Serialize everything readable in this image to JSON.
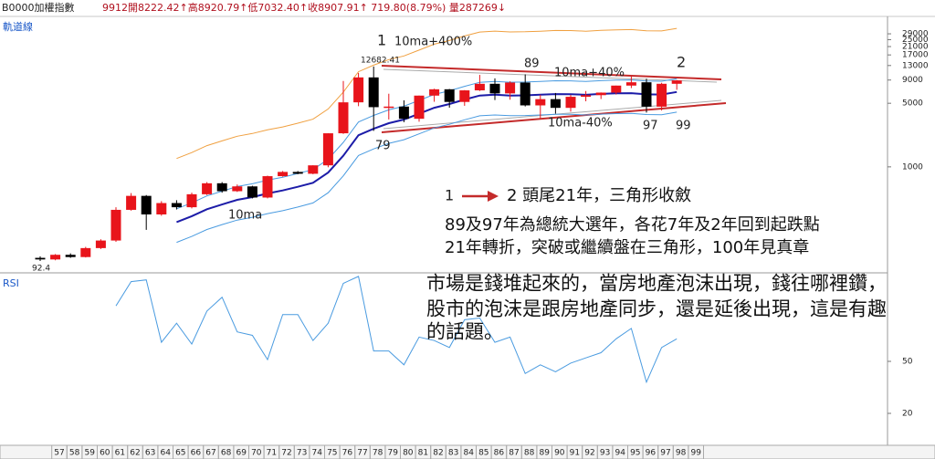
{
  "chart_data": [
    {
      "type": "candlestick",
      "title": "B0000加權指數",
      "subtitle": "9912開8222.42↑高8920.79↑低7032.40↑收8907.91↑  719.80(8.79%) 量287269↓",
      "panel_label": "軌道線",
      "categories": [
        "57",
        "58",
        "59",
        "60",
        "61",
        "62",
        "63",
        "64",
        "65",
        "66",
        "67",
        "68",
        "69",
        "70",
        "71",
        "72",
        "73",
        "74",
        "75",
        "76",
        "77",
        "78",
        "79",
        "80",
        "81",
        "82",
        "83",
        "84",
        "85",
        "86",
        "87",
        "88",
        "89",
        "90",
        "91",
        "92",
        "93",
        "94",
        "95",
        "96",
        "97",
        "98",
        "99"
      ],
      "open": [
        100,
        96,
        108,
        102,
        128,
        155,
        337,
        480,
        300,
        400,
        360,
        500,
        660,
        540,
        610,
        460,
        790,
        880,
        840,
        1039,
        2339,
        5119,
        9624,
        4530,
        4600,
        3377,
        6070,
        7124,
        5173,
        6933,
        8187,
        6418,
        8448,
        4739,
        5551,
        4452,
        5890,
        6139,
        6548,
        7823,
        8506,
        4591,
        8188
      ],
      "high": [
        104,
        110,
        112,
        132,
        160,
        360,
        515,
        490,
        420,
        430,
        520,
        680,
        680,
        640,
        620,
        800,
        900,
        900,
        1040,
        2340,
        8790,
        10773,
        12682.41,
        6365,
        5391,
        6070,
        7228,
        7180,
        6982,
        10256,
        9378,
        8710,
        10393,
        6198,
        6484,
        6182,
        6815,
        6575,
        7824,
        9807,
        9309,
        8395,
        8990
      ],
      "low": [
        92.4,
        94,
        100,
        101,
        125,
        150,
        330,
        203,
        290,
        340,
        350,
        490,
        520,
        530,
        450,
        450,
        780,
        830,
        830,
        990,
        2300,
        4645,
        2485,
        3316,
        3098,
        3135,
        5194,
        4474,
        4690,
        6820,
        5422,
        5475,
        4614,
        3411,
        3845,
        4044,
        5255,
        5565,
        6232,
        7344,
        3955,
        4164,
        7032
      ],
      "close": [
        96,
        108,
        102,
        128,
        155,
        337,
        480,
        300,
        400,
        360,
        500,
        660,
        540,
        610,
        460,
        790,
        880,
        840,
        1039,
        2339,
        5119,
        9624,
        4530,
        4600,
        3377,
        6070,
        7124,
        5173,
        6933,
        8187,
        6418,
        8448,
        4739,
        5551,
        4452,
        5890,
        6139,
        6548,
        7823,
        8506,
        4591,
        8188,
        8908
      ],
      "up_color": "#e8141b",
      "down_color": "#000000",
      "log": true,
      "ylim": [
        70,
        43000
      ],
      "yticks": [
        1000,
        5000,
        9000,
        13000,
        17000,
        21000,
        25000,
        29000
      ],
      "lines": [
        {
          "name": "10ma",
          "color": "#1c1ca8",
          "values": [
            null,
            null,
            null,
            null,
            null,
            null,
            null,
            null,
            null,
            247,
            287,
            342,
            386,
            434,
            465,
            510,
            550,
            604,
            668,
            866,
            1328,
            2224,
            2623,
            3022,
            3314,
            3842,
            4466,
            4900,
            5489,
            6074,
            6204,
            6086,
            6107,
            6202,
            6310,
            6292,
            6193,
            6331,
            6420,
            6451,
            6269,
            6243,
            6660
          ]
        },
        {
          "name": "10ma+400%",
          "color": "#f0a040",
          "values": [
            null,
            null,
            null,
            null,
            null,
            null,
            null,
            null,
            null,
            1235,
            1435,
            1710,
            1930,
            2170,
            2325,
            2550,
            2750,
            3020,
            3340,
            4330,
            6640,
            11120,
            13115,
            15110,
            16570,
            19210,
            22330,
            24500,
            27445,
            30370,
            31020,
            30430,
            30535,
            31010,
            31550,
            31460,
            30965,
            31655,
            32100,
            32255,
            31345,
            31215,
            33300
          ]
        },
        {
          "name": "10ma+40%",
          "color": "#4a9be0",
          "values": [
            null,
            null,
            null,
            null,
            null,
            null,
            null,
            null,
            null,
            346,
            402,
            479,
            540,
            608,
            651,
            714,
            770,
            846,
            935,
            1212,
            1859,
            3114,
            3672,
            4231,
            4640,
            5379,
            6252,
            6860,
            7685,
            8504,
            8686,
            8520,
            8550,
            8683,
            8834,
            8809,
            8670,
            8863,
            8988,
            9031,
            8777,
            8740,
            9324
          ]
        },
        {
          "name": "10ma-40%",
          "color": "#4a9be0",
          "values": [
            null,
            null,
            null,
            null,
            null,
            null,
            null,
            null,
            null,
            148,
            172,
            205,
            232,
            260,
            279,
            306,
            330,
            362,
            401,
            520,
            797,
            1334,
            1574,
            1813,
            1988,
            2305,
            2680,
            2940,
            3293,
            3644,
            3722,
            3652,
            3664,
            3721,
            3786,
            3775,
            3716,
            3799,
            3852,
            3871,
            3761,
            3746,
            3996
          ]
        }
      ],
      "annotations": [
        "1",
        "12682.41",
        "89",
        "2",
        "79",
        "97",
        "99",
        "92.4",
        "1"
      ],
      "notes": [
        "2  頭尾21年，三角形收斂",
        "89及97年為總統大選年，各花7年及2年回到起跌點",
        "21年轉折，突破或繼續盤在三角形，100年見真章",
        "市場是錢堆起來的，當房地產泡沫出現，錢往哪裡鑽，",
        "股市的泡沫是跟房地產同步，還是延後出現，這是有趣",
        "的話題。"
      ]
    },
    {
      "type": "line",
      "title": "RSI",
      "color": "#4a9be0",
      "values": [
        null,
        null,
        null,
        null,
        null,
        82,
        96,
        97,
        61,
        72,
        60,
        79,
        87,
        67,
        65,
        51,
        77,
        77,
        62,
        72,
        95,
        99,
        56,
        56,
        48,
        64,
        62,
        58,
        74,
        75,
        61,
        64,
        43,
        48,
        44,
        49,
        52,
        55,
        63,
        69,
        38,
        58,
        63
      ],
      "ylim": [
        0,
        100
      ],
      "yticks": [
        20,
        50
      ]
    }
  ]
}
